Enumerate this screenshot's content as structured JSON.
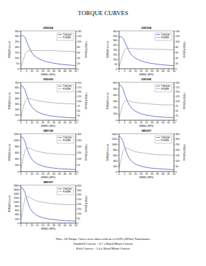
{
  "page": {
    "title": "TORQUE CURVES",
    "notes": [
      "Note:  All Torque Curves were taken with an AA2295 (28Vac) Transformer",
      "Standstill Current = 0.7 x Rated Motor Current",
      "Kick Current = 1.4 x Rated Motor Current"
    ]
  },
  "chart_data": [
    {
      "type": "line",
      "title": "23D204",
      "x_label": "SPEED (RPS)",
      "y_label": "TORQUE (oz-in)",
      "y2_label": "POWER (Watts)",
      "legend": "upper right",
      "grid": false,
      "x": [
        0,
        2,
        4,
        6,
        8,
        10,
        12,
        15,
        20,
        25,
        30,
        35,
        40,
        45,
        50
      ],
      "xlim": [
        0,
        50
      ],
      "xticks": [
        0,
        5,
        10,
        15,
        20,
        25,
        30,
        35,
        40,
        45,
        50
      ],
      "ylim": [
        0,
        350
      ],
      "yticks": [
        0,
        50,
        100,
        150,
        200,
        250,
        300,
        350
      ],
      "y2lim": [
        0,
        140
      ],
      "y2ticks": [
        0,
        20,
        40,
        60,
        80,
        100,
        120,
        140
      ],
      "series": [
        {
          "name": "TORQUE",
          "color": "#2a3fc0",
          "values": [
            310,
            305,
            290,
            240,
            190,
            150,
            125,
            100,
            75,
            60,
            50,
            42,
            36,
            32,
            28
          ]
        },
        {
          "name": "POWER",
          "color": "#9a9a9a",
          "axis": "y2",
          "values": [
            0,
            27,
            52,
            64,
            67,
            67,
            67,
            67,
            67,
            67,
            67,
            65,
            64,
            64,
            62
          ]
        }
      ]
    },
    {
      "type": "line",
      "title": "23D304",
      "x_label": "SPEED (RPS)",
      "y_label": "TORQUE (oz-in)",
      "y2_label": "POWER (Watts)",
      "legend": "upper right",
      "grid": false,
      "x": [
        0,
        2,
        4,
        6,
        8,
        10,
        12,
        15,
        20,
        25,
        30,
        35,
        40,
        45,
        50
      ],
      "xlim": [
        0,
        50
      ],
      "xticks": [
        0,
        5,
        10,
        15,
        20,
        25,
        30,
        35,
        40,
        45,
        50
      ],
      "ylim": [
        0,
        400
      ],
      "yticks": [
        0,
        50,
        100,
        150,
        200,
        250,
        300,
        350,
        400
      ],
      "y2lim": [
        0,
        140
      ],
      "y2ticks": [
        0,
        20,
        40,
        60,
        80,
        100,
        120,
        140
      ],
      "series": [
        {
          "name": "TORQUE",
          "color": "#2a3fc0",
          "values": [
            330,
            340,
            320,
            270,
            215,
            170,
            140,
            110,
            82,
            65,
            54,
            46,
            40,
            35,
            31
          ]
        },
        {
          "name": "POWER",
          "color": "#9a9a9a",
          "axis": "y2",
          "values": [
            0,
            30,
            57,
            72,
            76,
            75,
            75,
            73,
            73,
            72,
            72,
            71,
            71,
            70,
            69
          ]
        }
      ]
    },
    {
      "type": "line",
      "title": "23D205",
      "x_label": "SPEED (RPS)",
      "y_label": "TORQUE (oz-in)",
      "y2_label": "POWER (Watts)",
      "legend": "upper right",
      "grid": false,
      "x": [
        0,
        2,
        4,
        6,
        8,
        10,
        12,
        15,
        20,
        25,
        30,
        35,
        40,
        45,
        50
      ],
      "xlim": [
        0,
        50
      ],
      "xticks": [
        0,
        5,
        10,
        15,
        20,
        25,
        30,
        35,
        40,
        45,
        50
      ],
      "ylim": [
        0,
        700
      ],
      "yticks": [
        0,
        100,
        200,
        300,
        400,
        500,
        600,
        700
      ],
      "y2lim": [
        0,
        200
      ],
      "y2ticks": [
        0,
        25,
        50,
        75,
        100,
        125,
        150,
        175,
        200
      ],
      "series": [
        {
          "name": "TORQUE",
          "color": "#2a3fc0",
          "values": [
            640,
            620,
            560,
            430,
            320,
            250,
            200,
            155,
            110,
            85,
            68,
            57,
            49,
            43,
            38
          ]
        },
        {
          "name": "POWER",
          "color": "#9a9a9a",
          "axis": "y2",
          "values": [
            0,
            55,
            99,
            115,
            114,
            111,
            107,
            103,
            98,
            94,
            91,
            89,
            87,
            86,
            84
          ]
        }
      ]
    },
    {
      "type": "line",
      "title": "23D306",
      "x_label": "SPEED (RPS)",
      "y_label": "TORQUE (oz-in)",
      "y2_label": "POWER (Watts)",
      "legend": "upper right",
      "grid": false,
      "x": [
        0,
        2,
        4,
        6,
        8,
        10,
        12,
        15,
        20,
        25,
        30,
        35,
        40,
        45,
        50
      ],
      "xlim": [
        0,
        50
      ],
      "xticks": [
        0,
        5,
        10,
        15,
        20,
        25,
        30,
        35,
        40,
        45,
        50
      ],
      "ylim": [
        0,
        600
      ],
      "yticks": [
        0,
        100,
        200,
        300,
        400,
        500,
        600
      ],
      "y2lim": [
        0,
        200
      ],
      "y2ticks": [
        0,
        25,
        50,
        75,
        100,
        125,
        150,
        175,
        200
      ],
      "series": [
        {
          "name": "TORQUE",
          "color": "#2a3fc0",
          "values": [
            560,
            550,
            490,
            380,
            290,
            225,
            180,
            140,
            100,
            78,
            63,
            53,
            45,
            40,
            36
          ]
        },
        {
          "name": "POWER",
          "color": "#9a9a9a",
          "axis": "y2",
          "values": [
            0,
            49,
            87,
            101,
            103,
            100,
            96,
            93,
            89,
            87,
            84,
            82,
            80,
            80,
            80
          ]
        }
      ]
    },
    {
      "type": "line",
      "title": "34D108",
      "x_label": "SPEED (RPS)",
      "y_label": "TORQUE (oz-in)",
      "y2_label": "POWER (Watts)",
      "legend": "upper right",
      "grid": false,
      "x": [
        0,
        2,
        4,
        6,
        8,
        10,
        12,
        15,
        20,
        25,
        30,
        35,
        40,
        45,
        50
      ],
      "xlim": [
        0,
        50
      ],
      "xticks": [
        0,
        5,
        10,
        15,
        20,
        25,
        30,
        35,
        40,
        45,
        50
      ],
      "ylim": [
        0,
        1200
      ],
      "yticks": [
        0,
        200,
        400,
        600,
        800,
        1000,
        1200
      ],
      "y2lim": [
        0,
        300
      ],
      "y2ticks": [
        0,
        50,
        100,
        150,
        200,
        250,
        300
      ],
      "series": [
        {
          "name": "TORQUE",
          "color": "#2a3fc0",
          "values": [
            1100,
            1080,
            950,
            700,
            520,
            400,
            320,
            240,
            170,
            130,
            105,
            88,
            76,
            67,
            60
          ]
        },
        {
          "name": "POWER",
          "color": "#9a9a9a",
          "axis": "y2",
          "values": [
            0,
            96,
            169,
            187,
            185,
            178,
            171,
            160,
            151,
            144,
            140,
            137,
            135,
            134,
            133
          ]
        }
      ]
    },
    {
      "type": "line",
      "title": "34D207",
      "x_label": "SPEED (RPS)",
      "y_label": "TORQUE (oz-in)",
      "y2_label": "POWER (Watts)",
      "legend": "upper right",
      "grid": false,
      "x": [
        0,
        2,
        4,
        6,
        8,
        10,
        12,
        15,
        20,
        25,
        30,
        35,
        40,
        45,
        50
      ],
      "xlim": [
        0,
        50
      ],
      "xticks": [
        0,
        5,
        10,
        15,
        20,
        25,
        30,
        35,
        40,
        45,
        50
      ],
      "ylim": [
        0,
        1400
      ],
      "yticks": [
        0,
        200,
        400,
        600,
        800,
        1000,
        1200,
        1400
      ],
      "y2lim": [
        0,
        350
      ],
      "y2ticks": [
        0,
        50,
        100,
        150,
        200,
        250,
        300,
        350
      ],
      "series": [
        {
          "name": "TORQUE",
          "color": "#2a3fc0",
          "values": [
            1300,
            1260,
            1100,
            820,
            600,
            460,
            365,
            275,
            195,
            150,
            120,
            100,
            86,
            76,
            68
          ]
        },
        {
          "name": "POWER",
          "color": "#9a9a9a",
          "axis": "y2",
          "values": [
            0,
            112,
            195,
            218,
            213,
            204,
            194,
            183,
            173,
            167,
            160,
            155,
            153,
            152,
            151
          ]
        }
      ]
    },
    {
      "type": "line",
      "title": "34D307",
      "x_label": "SPEED (RPS)",
      "y_label": "TORQUE (oz-in)",
      "y2_label": "POWER (Watts)",
      "legend": "upper right",
      "grid": false,
      "x": [
        0,
        2,
        4,
        6,
        8,
        10,
        12,
        15,
        20,
        25,
        30,
        35,
        40,
        45,
        50
      ],
      "xlim": [
        0,
        50
      ],
      "xticks": [
        0,
        5,
        10,
        15,
        20,
        25,
        30,
        35,
        40,
        45,
        50
      ],
      "ylim": [
        0,
        1800
      ],
      "yticks": [
        0,
        200,
        400,
        600,
        800,
        1000,
        1200,
        1400,
        1600,
        1800
      ],
      "y2lim": [
        0,
        400
      ],
      "y2ticks": [
        0,
        50,
        100,
        150,
        200,
        250,
        300,
        350,
        400
      ],
      "series": [
        {
          "name": "TORQUE",
          "color": "#2a3fc0",
          "values": [
            1700,
            1650,
            1450,
            1050,
            760,
            580,
            460,
            345,
            245,
            188,
            152,
            127,
            109,
            96,
            86
          ]
        },
        {
          "name": "POWER",
          "color": "#9a9a9a",
          "axis": "y2",
          "values": [
            0,
            146,
            257,
            280,
            270,
            257,
            245,
            230,
            218,
            209,
            202,
            197,
            194,
            192,
            191
          ]
        }
      ]
    }
  ]
}
